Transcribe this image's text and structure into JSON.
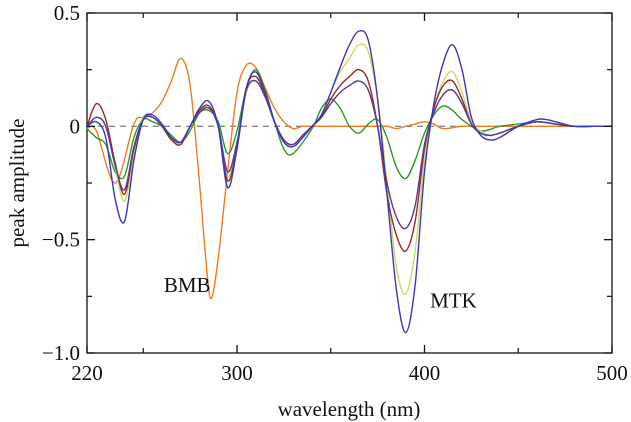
{
  "chart_data": {
    "type": "line",
    "title": "",
    "xlabel": "wavelength (nm)",
    "ylabel": "peak amplitude",
    "xlim": [
      220,
      500
    ],
    "ylim": [
      -1.0,
      0.5
    ],
    "x_ticks": [
      220,
      300,
      400,
      500
    ],
    "x_tick_labels": [
      "220",
      "300",
      "400",
      "500"
    ],
    "x_minor_ticks": [
      250,
      350,
      450
    ],
    "y_ticks": [
      -1.0,
      -0.5,
      0,
      0.5
    ],
    "y_tick_labels": [
      "−1.0",
      "−0.5",
      "0",
      "0.5"
    ],
    "y_minor_ticks": [
      -0.75,
      -0.25,
      0.25
    ],
    "grid": false,
    "legend": "none",
    "zero_line": {
      "y": 0,
      "style": "dashed",
      "color": "#888888"
    },
    "annotations": [
      {
        "text": "BMB",
        "x": 261,
        "y": -0.73
      },
      {
        "text": "MTK",
        "x": 403,
        "y": -0.8
      }
    ],
    "series": [
      {
        "color": "#f07a1e",
        "x": [
          220,
          225,
          235,
          245,
          250,
          255,
          260,
          265,
          270,
          275,
          280,
          283,
          286,
          290,
          295,
          300,
          305,
          310,
          315,
          320,
          325,
          330,
          335,
          340,
          350,
          360,
          370,
          380,
          385,
          390,
          395,
          400,
          405,
          410,
          420,
          430,
          440,
          460,
          480,
          500
        ],
        "y": [
          -0.01,
          -0.02,
          -0.25,
          0.01,
          0.04,
          0.06,
          0.11,
          0.2,
          0.3,
          0.18,
          -0.25,
          -0.55,
          -0.76,
          -0.58,
          -0.2,
          0.15,
          0.27,
          0.26,
          0.17,
          0.08,
          0.02,
          -0.01,
          0,
          0,
          0,
          0,
          0,
          0,
          -0.01,
          0,
          0.01,
          0.02,
          0.01,
          -0.01,
          0,
          0,
          0,
          0,
          0,
          0
        ]
      },
      {
        "color": "#2a9a2a",
        "x": [
          220,
          225,
          230,
          235,
          240,
          245,
          250,
          255,
          260,
          265,
          270,
          275,
          280,
          285,
          290,
          295,
          300,
          305,
          310,
          315,
          320,
          325,
          330,
          340,
          345,
          350,
          355,
          360,
          365,
          370,
          375,
          380,
          385,
          390,
          395,
          400,
          405,
          410,
          415,
          420,
          430,
          440,
          450,
          460,
          470,
          480,
          490,
          500
        ],
        "y": [
          -0.01,
          -0.05,
          -0.08,
          -0.2,
          -0.22,
          -0.05,
          0.03,
          0.02,
          0.0,
          -0.04,
          -0.07,
          -0.02,
          0.06,
          0.07,
          0.02,
          -0.12,
          -0.02,
          0.17,
          0.25,
          0.16,
          0.02,
          -0.1,
          -0.12,
          -0.01,
          0.08,
          0.12,
          0.08,
          0.0,
          -0.03,
          0.01,
          0.03,
          -0.05,
          -0.18,
          -0.23,
          -0.15,
          -0.03,
          0.05,
          0.09,
          0.07,
          0.03,
          -0.02,
          0.0,
          0.01,
          0.02,
          0.01,
          0.0,
          0.0,
          0.0
        ]
      },
      {
        "color": "#c8dc62",
        "x": [
          220,
          225,
          230,
          235,
          240,
          245,
          250,
          255,
          260,
          265,
          270,
          275,
          280,
          285,
          290,
          295,
          300,
          305,
          310,
          315,
          320,
          325,
          330,
          335,
          340,
          345,
          350,
          355,
          360,
          365,
          370,
          375,
          380,
          385,
          390,
          395,
          400,
          405,
          410,
          415,
          420,
          425,
          430,
          435,
          440,
          450,
          460,
          470,
          480,
          490,
          500
        ],
        "y": [
          0.0,
          0.04,
          0.0,
          -0.18,
          -0.33,
          -0.12,
          0.04,
          0.04,
          0.0,
          -0.06,
          -0.08,
          0.0,
          0.07,
          0.08,
          0.0,
          -0.22,
          -0.08,
          0.15,
          0.2,
          0.13,
          0.02,
          -0.07,
          -0.08,
          -0.04,
          0.0,
          0.05,
          0.15,
          0.24,
          0.3,
          0.36,
          0.33,
          0.12,
          -0.25,
          -0.62,
          -0.74,
          -0.55,
          -0.15,
          0.08,
          0.2,
          0.24,
          0.15,
          0.02,
          -0.02,
          -0.04,
          -0.03,
          0.0,
          0.02,
          0.01,
          0.0,
          0.0,
          0.0
        ]
      },
      {
        "color": "#9b2a2a",
        "x": [
          220,
          225,
          230,
          235,
          240,
          245,
          250,
          255,
          260,
          265,
          270,
          275,
          280,
          285,
          290,
          295,
          300,
          305,
          310,
          315,
          320,
          325,
          330,
          335,
          340,
          345,
          350,
          355,
          360,
          365,
          370,
          375,
          380,
          385,
          390,
          395,
          400,
          405,
          410,
          415,
          420,
          425,
          430,
          435,
          440,
          450,
          460,
          470,
          480,
          490,
          500
        ],
        "y": [
          0.0,
          0.1,
          0.03,
          -0.16,
          -0.3,
          -0.1,
          0.03,
          0.04,
          0.0,
          -0.06,
          -0.08,
          0.0,
          0.07,
          0.09,
          0.0,
          -0.24,
          -0.09,
          0.17,
          0.22,
          0.14,
          0.02,
          -0.06,
          -0.08,
          -0.04,
          0.0,
          0.04,
          0.12,
          0.18,
          0.22,
          0.25,
          0.2,
          0.0,
          -0.3,
          -0.48,
          -0.55,
          -0.42,
          -0.1,
          0.08,
          0.18,
          0.2,
          0.12,
          0.01,
          -0.03,
          -0.04,
          -0.03,
          0.0,
          0.02,
          0.01,
          0.0,
          0.0,
          0.0
        ]
      },
      {
        "color": "#5a3a96",
        "x": [
          220,
          225,
          230,
          235,
          240,
          245,
          250,
          255,
          260,
          265,
          270,
          275,
          280,
          285,
          290,
          295,
          300,
          305,
          310,
          315,
          320,
          325,
          330,
          335,
          340,
          345,
          350,
          355,
          360,
          365,
          370,
          375,
          380,
          385,
          390,
          395,
          400,
          405,
          410,
          415,
          420,
          425,
          430,
          435,
          440,
          450,
          460,
          470,
          480,
          490,
          500
        ],
        "y": [
          0.0,
          0.04,
          0.0,
          -0.17,
          -0.28,
          -0.09,
          0.03,
          0.04,
          0.0,
          -0.05,
          -0.07,
          0.0,
          0.06,
          0.08,
          0.0,
          -0.2,
          -0.07,
          0.16,
          0.2,
          0.13,
          0.02,
          -0.06,
          -0.08,
          -0.04,
          0.0,
          0.04,
          0.1,
          0.15,
          0.18,
          0.2,
          0.16,
          0.0,
          -0.25,
          -0.4,
          -0.45,
          -0.35,
          -0.08,
          0.06,
          0.14,
          0.16,
          0.1,
          0.01,
          -0.03,
          -0.04,
          -0.03,
          0.0,
          0.02,
          0.01,
          0.0,
          0.0,
          0.0
        ]
      },
      {
        "color": "#3838b8",
        "x": [
          220,
          225,
          230,
          235,
          240,
          245,
          250,
          255,
          260,
          265,
          270,
          275,
          280,
          285,
          290,
          295,
          300,
          305,
          310,
          315,
          320,
          325,
          330,
          335,
          340,
          345,
          350,
          355,
          360,
          365,
          370,
          375,
          380,
          385,
          390,
          395,
          400,
          405,
          410,
          415,
          420,
          425,
          430,
          435,
          440,
          450,
          460,
          465,
          470,
          480,
          490,
          500
        ],
        "y": [
          0.0,
          0.02,
          -0.05,
          -0.32,
          -0.42,
          -0.15,
          0.03,
          0.05,
          0.01,
          -0.05,
          -0.07,
          0.0,
          0.08,
          0.11,
          0.0,
          -0.27,
          -0.1,
          0.17,
          0.24,
          0.15,
          0.02,
          -0.07,
          -0.09,
          -0.05,
          0.0,
          0.05,
          0.15,
          0.26,
          0.36,
          0.42,
          0.38,
          0.12,
          -0.3,
          -0.72,
          -0.91,
          -0.7,
          -0.2,
          0.1,
          0.28,
          0.36,
          0.25,
          0.04,
          -0.04,
          -0.06,
          -0.05,
          0.0,
          0.03,
          0.03,
          0.02,
          0.0,
          0.0,
          0.0
        ]
      }
    ]
  }
}
